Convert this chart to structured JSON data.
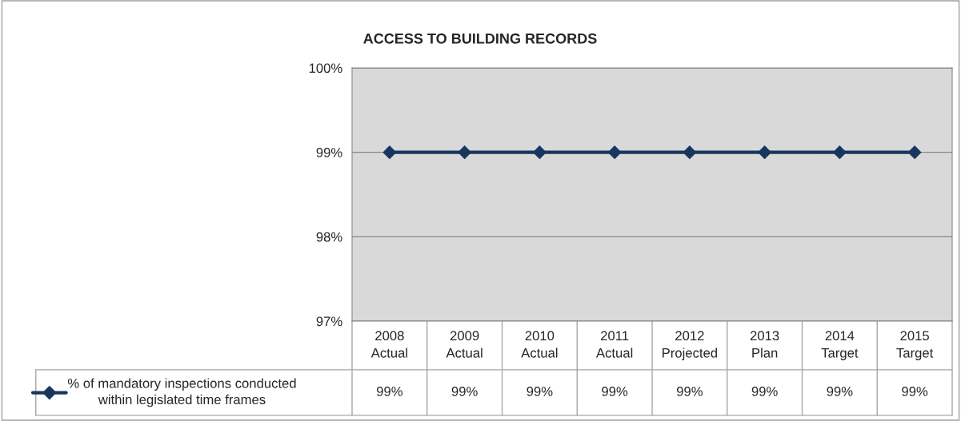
{
  "chart_data": {
    "type": "line",
    "title": "ACCESS TO BUILDING RECORDS",
    "categories": [
      "2008\nActual",
      "2009\nActual",
      "2010\nActual",
      "2011\nActual",
      "2012\nProjected",
      "2013\nPlan",
      "2014\nTarget",
      "2015\nTarget"
    ],
    "series": [
      {
        "name": "% of mandatory inspections conducted\nwithin legislated time frames",
        "color": "#17365d",
        "values": [
          99,
          99,
          99,
          99,
          99,
          99,
          99,
          99
        ],
        "value_labels": [
          "99%",
          "99%",
          "99%",
          "99%",
          "99%",
          "99%",
          "99%",
          "99%"
        ]
      }
    ],
    "ylim": [
      97,
      100
    ],
    "yticks": [
      {
        "value": 97,
        "label": "97%"
      },
      {
        "value": 98,
        "label": "98%"
      },
      {
        "value": 99,
        "label": "99%"
      },
      {
        "value": 100,
        "label": "100%"
      }
    ],
    "grid": "y",
    "marker": "diamond",
    "line_style": "solid",
    "legend": "bottom left"
  }
}
